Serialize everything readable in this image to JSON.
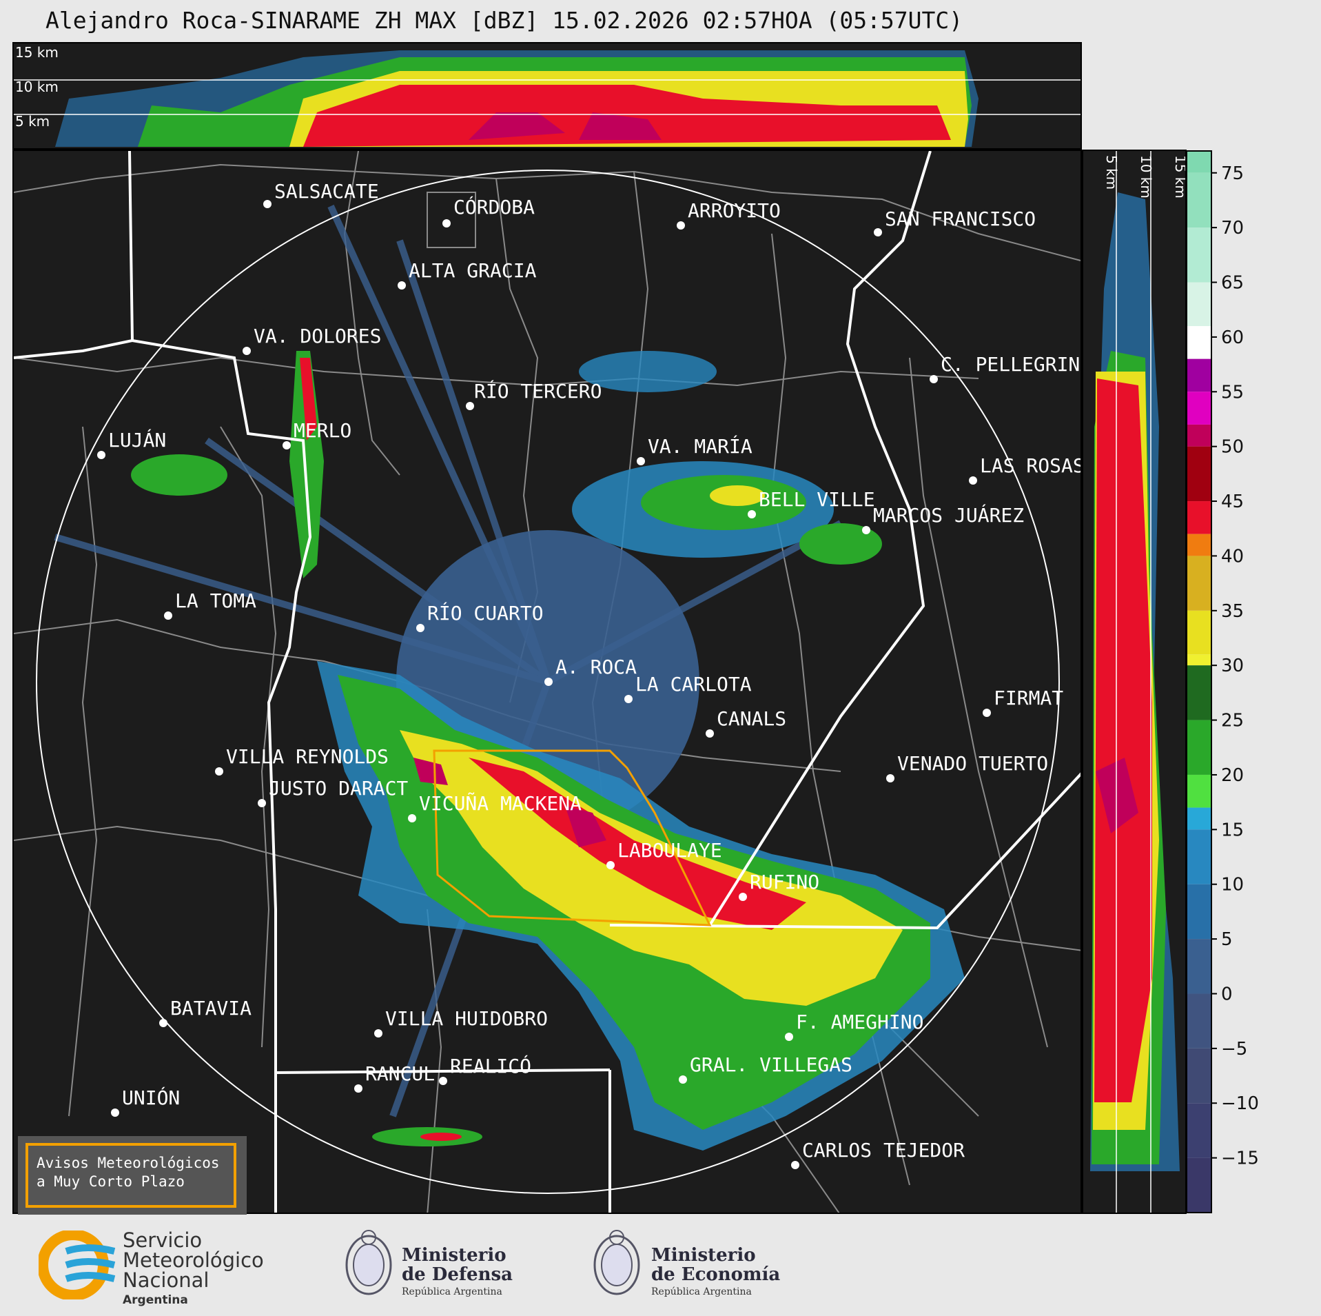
{
  "title": "Alejandro Roca-SINARAME ZH MAX [dBZ] 15.02.2026 02:57HOA (05:57UTC)",
  "top_panel_km_labels": [
    "15 km",
    "10 km",
    "5 km"
  ],
  "side_panel_km_labels": [
    "5 km",
    "10 km",
    "15 km"
  ],
  "cities": [
    {
      "id": "salsacate",
      "name": "SALSACATE"
    },
    {
      "id": "cordoba",
      "name": "CÓRDOBA"
    },
    {
      "id": "arroyito",
      "name": "ARROYITO"
    },
    {
      "id": "san-francisco",
      "name": "SAN FRANCISCO"
    },
    {
      "id": "alta-gracia",
      "name": "ALTA GRACIA"
    },
    {
      "id": "va-dolores",
      "name": "VA. DOLORES"
    },
    {
      "id": "c-pellegrini",
      "name": "C. PELLEGRINI"
    },
    {
      "id": "rio-tercero",
      "name": "RÍO TERCERO"
    },
    {
      "id": "lujan",
      "name": "LUJÁN"
    },
    {
      "id": "merlo",
      "name": "MERLO"
    },
    {
      "id": "va-maria",
      "name": "VA. MARÍA"
    },
    {
      "id": "las-rosas",
      "name": "LAS ROSAS"
    },
    {
      "id": "bell-ville",
      "name": "BELL VILLE"
    },
    {
      "id": "marcos-juarez",
      "name": "MARCOS JUÁREZ"
    },
    {
      "id": "la-toma",
      "name": "LA TOMA"
    },
    {
      "id": "rio-cuarto",
      "name": "RÍO CUARTO"
    },
    {
      "id": "a-roca",
      "name": "A. ROCA"
    },
    {
      "id": "la-carlota",
      "name": "LA CARLOTA"
    },
    {
      "id": "firmat",
      "name": "FIRMAT"
    },
    {
      "id": "canals",
      "name": "CANALS"
    },
    {
      "id": "villa-reynolds",
      "name": "VILLA REYNOLDS"
    },
    {
      "id": "venado-tuerto",
      "name": "VENADO TUERTO"
    },
    {
      "id": "justo-daract",
      "name": "JUSTO DARACT"
    },
    {
      "id": "vicuna-mackena",
      "name": "VICUÑA MACKENA"
    },
    {
      "id": "laboulaye",
      "name": "LABOULAYE"
    },
    {
      "id": "rufino",
      "name": "RUFINO"
    },
    {
      "id": "batavia",
      "name": "BATAVIA"
    },
    {
      "id": "villa-huidobro",
      "name": "VILLA HUIDOBRO"
    },
    {
      "id": "f-ameghino",
      "name": "F. AMEGHINO"
    },
    {
      "id": "rancul",
      "name": "RANCUL"
    },
    {
      "id": "realico",
      "name": "REALICÓ"
    },
    {
      "id": "gral-villegas",
      "name": "GRAL. VILLEGAS"
    },
    {
      "id": "union",
      "name": "UNIÓN"
    },
    {
      "id": "carlos-tejedor",
      "name": "CARLOS TEJEDOR"
    }
  ],
  "colorbar": {
    "ticks": [
      "75",
      "70",
      "65",
      "60",
      "55",
      "50",
      "45",
      "40",
      "35",
      "30",
      "25",
      "20",
      "15",
      "10",
      "5",
      "0",
      "−5",
      "−10",
      "−15"
    ],
    "bands": [
      {
        "from": 75,
        "color": "#7fd9b0"
      },
      {
        "from": 70,
        "color": "#92e0bd"
      },
      {
        "from": 65,
        "color": "#b2ebd3"
      },
      {
        "from": 61,
        "color": "#d8f3e6"
      },
      {
        "from": 58,
        "color": "#ffffff"
      },
      {
        "from": 55,
        "color": "#a000a0"
      },
      {
        "from": 52,
        "color": "#e000c0"
      },
      {
        "from": 50,
        "color": "#c0005a"
      },
      {
        "from": 45,
        "color": "#a00010"
      },
      {
        "from": 42,
        "color": "#e8102a"
      },
      {
        "from": 40,
        "color": "#f07c10"
      },
      {
        "from": 35,
        "color": "#d8b020"
      },
      {
        "from": 31,
        "color": "#e8e020"
      },
      {
        "from": 30,
        "color": "#f0f030"
      },
      {
        "from": 25,
        "color": "#1f6a20"
      },
      {
        "from": 20,
        "color": "#2aa82a"
      },
      {
        "from": 17,
        "color": "#50e040"
      },
      {
        "from": 15,
        "color": "#28a8d8"
      },
      {
        "from": 10,
        "color": "#2888c0"
      },
      {
        "from": 5,
        "color": "#2870a8"
      },
      {
        "from": 0,
        "color": "#3a6090"
      },
      {
        "from": -5,
        "color": "#405480"
      },
      {
        "from": -10,
        "color": "#404a74"
      },
      {
        "from": -15,
        "color": "#3c4070"
      },
      {
        "from": -20,
        "color": "#3a3868"
      }
    ]
  },
  "avisos": {
    "line1": "Avisos Meteorológicos",
    "line2": "a Muy Corto Plazo"
  },
  "footer": {
    "smn": {
      "line1": "Servicio",
      "line2": "Meteorológico",
      "line3": "Nacional",
      "country": "Argentina"
    },
    "defensa": {
      "line1": "Ministerio",
      "line2": "de Defensa",
      "sub": "República Argentina"
    },
    "economia": {
      "line1": "Ministerio",
      "line2": "de Economía",
      "sub": "República Argentina"
    }
  },
  "colors": {
    "warning_polygon": "#f3a000",
    "background": "#1c1c1c",
    "range_ring": "#ffffff"
  }
}
